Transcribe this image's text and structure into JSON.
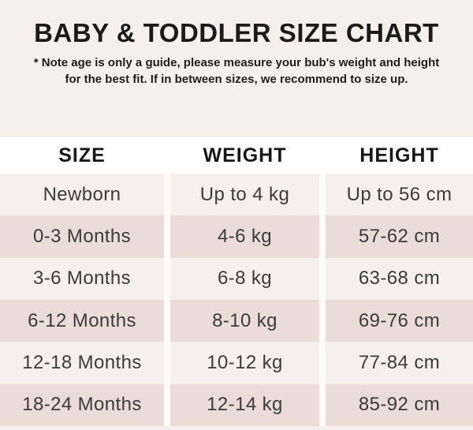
{
  "page": {
    "title": "BABY & TODDLER SIZE CHART",
    "note": "* Note age is only a guide, please measure your bub's weight and height for the best fit. If in between sizes, we recommend to size up."
  },
  "chart_data": {
    "type": "table",
    "title": "BABY & TODDLER SIZE CHART",
    "columns": [
      "SIZE",
      "WEIGHT",
      "HEIGHT"
    ],
    "rows": [
      [
        "Newborn",
        "Up to 4 kg",
        "Up to 56 cm"
      ],
      [
        "0-3 Months",
        "4-6 kg",
        "57-62 cm"
      ],
      [
        "3-6 Months",
        "6-8 kg",
        "63-68 cm"
      ],
      [
        "6-12 Months",
        "8-10 kg",
        "69-76 cm"
      ],
      [
        "12-18 Months",
        "10-12 kg",
        "77-84 cm"
      ],
      [
        "18-24 Months",
        "12-14 kg",
        "85-92 cm"
      ]
    ],
    "layout": {
      "row_shading": "alternating",
      "first_data_row_shade": "light"
    }
  },
  "colors": {
    "page_background": "#f4f0ed",
    "header_band": "#fefefe",
    "row_light": "#f5f0ee",
    "row_dark": "#ebdcd8",
    "column_gap": "#fdfcfb",
    "title_text": "#1b1b1b",
    "body_text": "#3b3b3b"
  }
}
